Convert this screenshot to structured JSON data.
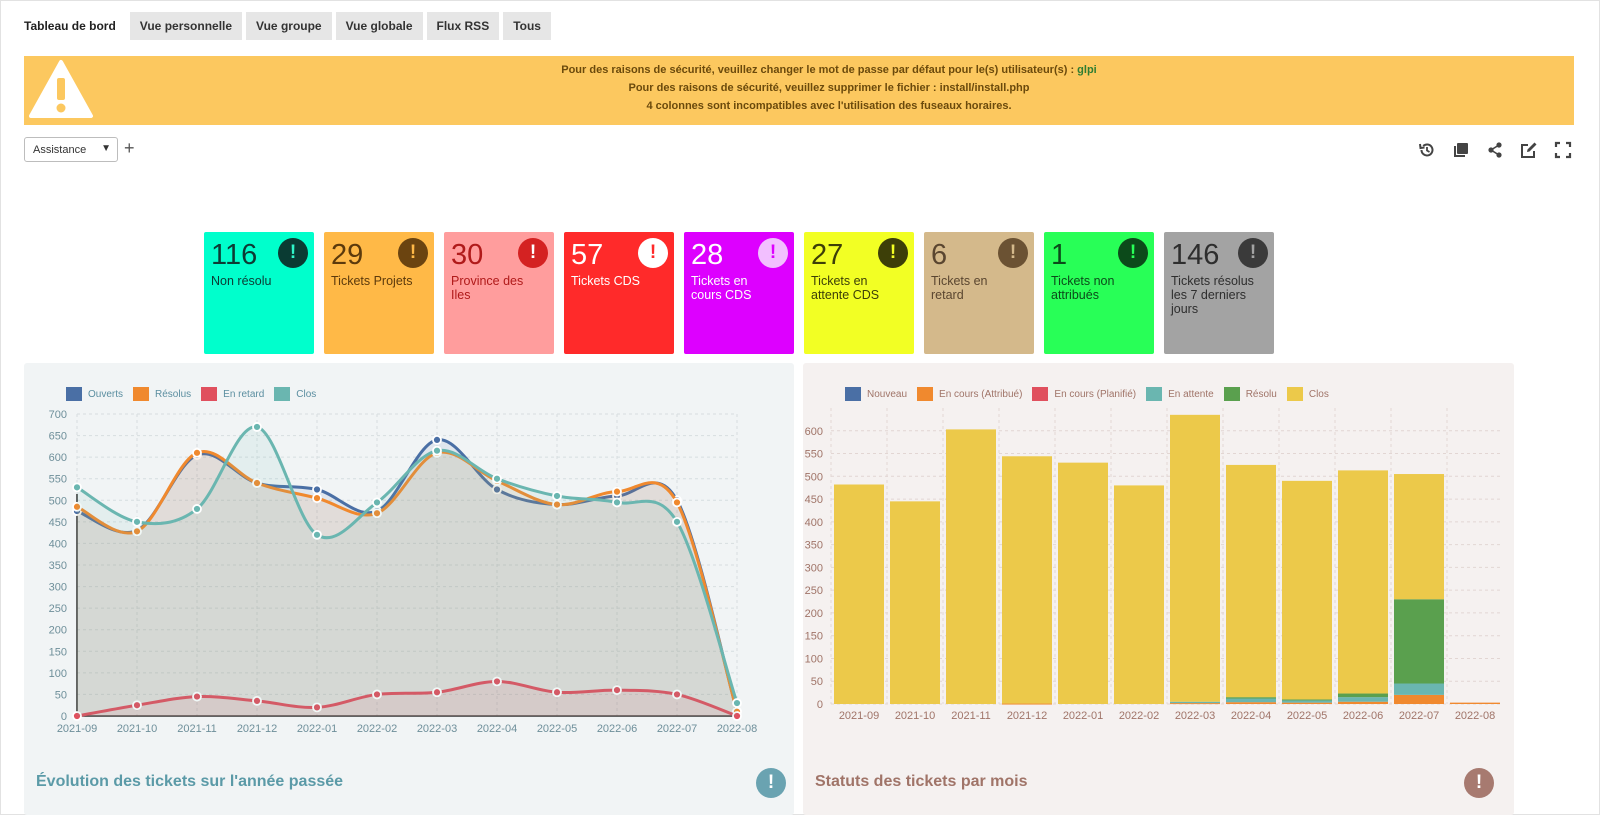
{
  "tabs": [
    {
      "label": "Tableau de bord"
    },
    {
      "label": "Vue personnelle"
    },
    {
      "label": "Vue groupe"
    },
    {
      "label": "Vue globale"
    },
    {
      "label": "Flux RSS"
    },
    {
      "label": "Tous"
    }
  ],
  "banner": {
    "line1": "Pour des raisons de sécurité, veuillez changer le mot de passe par défaut pour le(s) utilisateur(s) : ",
    "line1_link": "glpi",
    "line2": "Pour des raisons de sécurité, veuillez supprimer le fichier : install/install.php",
    "line3": "4 colonnes sont incompatibles avec l'utilisation des fuseaux horaires.",
    "color": "#fcc85f"
  },
  "toolbar": {
    "dashboard_select": "Assistance",
    "add_icon": "plus-icon",
    "tools": [
      "history-icon",
      "clone-icon",
      "share-icon",
      "edit-icon",
      "fullscreen-icon"
    ]
  },
  "tiles": [
    {
      "value": "116",
      "label": "Non résolu",
      "bg": "#00ffcc",
      "badge_bg": "#0a3b33",
      "badge_fg": "#2ff5c8",
      "text": "#0d3b34"
    },
    {
      "value": "29",
      "label": "Tickets Projets",
      "bg": "#ffb947",
      "badge_bg": "#6b4410",
      "badge_fg": "#ffb947",
      "text": "#5c3a0c"
    },
    {
      "value": "30",
      "label": "Province des Iles",
      "bg": "#ff9d9d",
      "badge_bg": "#d42222",
      "badge_fg": "#ffffff",
      "text": "#b01a1a"
    },
    {
      "value": "57",
      "label": "Tickets CDS",
      "bg": "#ff2a2a",
      "badge_bg": "#ffffff",
      "badge_fg": "#ff2a2a",
      "text": "#ffffff"
    },
    {
      "value": "28",
      "label": "Tickets en cours CDS",
      "bg": "#dd00ff",
      "badge_bg": "#f2bfff",
      "badge_fg": "#dd00ff",
      "text": "#ffffff"
    },
    {
      "value": "27",
      "label": "Tickets en attente CDS",
      "bg": "#f2ff24",
      "badge_bg": "#3d3f08",
      "badge_fg": "#f2ff24",
      "text": "#3d3f08"
    },
    {
      "value": "6",
      "label": "Tickets en retard",
      "bg": "#d4b98b",
      "badge_bg": "#6b5233",
      "badge_fg": "#d4b98b",
      "text": "#5a4630"
    },
    {
      "value": "1",
      "label": "Tickets non attribués",
      "bg": "#28ff57",
      "badge_bg": "#0c4a1a",
      "badge_fg": "#28ff57",
      "text": "#0c4a1a"
    },
    {
      "value": "146",
      "label": "Tickets résolus les 7 derniers jours",
      "bg": "#a3a3a3",
      "badge_bg": "#3a3a3a",
      "badge_fg": "#a3a3a3",
      "text": "#2e2e2e"
    }
  ],
  "left_card": {
    "title": "Évolution des tickets sur l'année passée",
    "badge_color": "#6aa3b1",
    "legend": [
      {
        "name": "Ouverts",
        "color": "#4a6fa5"
      },
      {
        "name": "Résolus",
        "color": "#f0892e"
      },
      {
        "name": "En retard",
        "color": "#e0505e"
      },
      {
        "name": "Clos",
        "color": "#6ab6b0"
      }
    ]
  },
  "right_card": {
    "title": "Statuts des tickets par mois",
    "badge_color": "#a77a70",
    "legend": [
      {
        "name": "Nouveau",
        "color": "#4a6fa5"
      },
      {
        "name": "En cours (Attribué)",
        "color": "#f0892e"
      },
      {
        "name": "En cours (Planifié)",
        "color": "#e0505e"
      },
      {
        "name": "En attente",
        "color": "#6ab6b0"
      },
      {
        "name": "Résolu",
        "color": "#5aa04e"
      },
      {
        "name": "Clos",
        "color": "#ecc94a"
      }
    ]
  },
  "chart_data": [
    {
      "type": "line",
      "title": "Évolution des tickets sur l'année passée",
      "categories": [
        "2021-09",
        "2021-10",
        "2021-11",
        "2021-12",
        "2022-01",
        "2022-02",
        "2022-03",
        "2022-04",
        "2022-05",
        "2022-06",
        "2022-07",
        "2022-08"
      ],
      "ylim": [
        0,
        700
      ],
      "yticks": [
        0,
        50,
        100,
        150,
        200,
        250,
        300,
        350,
        400,
        450,
        500,
        550,
        600,
        650,
        700
      ],
      "grid": true,
      "legend_position": "top-left",
      "series": [
        {
          "name": "Ouverts",
          "color": "#4a6fa5",
          "values": [
            475,
            430,
            605,
            540,
            525,
            475,
            640,
            525,
            490,
            510,
            500,
            10
          ]
        },
        {
          "name": "Résolus",
          "color": "#f0892e",
          "values": [
            485,
            428,
            610,
            540,
            505,
            470,
            610,
            545,
            490,
            520,
            495,
            10
          ]
        },
        {
          "name": "En retard",
          "color": "#e0505e",
          "values": [
            0,
            25,
            45,
            35,
            20,
            50,
            55,
            80,
            55,
            60,
            50,
            0
          ]
        },
        {
          "name": "Clos",
          "color": "#6ab6b0",
          "values": [
            530,
            450,
            480,
            670,
            420,
            495,
            615,
            550,
            510,
            495,
            450,
            30
          ]
        }
      ]
    },
    {
      "type": "bar",
      "stacked": true,
      "title": "Statuts des tickets par mois",
      "categories": [
        "2021-09",
        "2021-10",
        "2021-11",
        "2021-12",
        "2022-01",
        "2022-02",
        "2022-03",
        "2022-04",
        "2022-05",
        "2022-06",
        "2022-07",
        "2022-08"
      ],
      "ylim": [
        0,
        650
      ],
      "yticks": [
        0,
        50,
        100,
        150,
        200,
        250,
        300,
        350,
        400,
        450,
        500,
        550,
        600
      ],
      "grid": true,
      "legend_position": "top-left",
      "series": [
        {
          "name": "Nouveau",
          "color": "#4a6fa5",
          "values": [
            0,
            0,
            0,
            0,
            0,
            0,
            0,
            0,
            0,
            0,
            0,
            0
          ]
        },
        {
          "name": "En cours (Attribué)",
          "color": "#f0892e",
          "values": [
            0,
            0,
            0,
            1,
            0,
            0,
            2,
            4,
            3,
            5,
            20,
            3
          ]
        },
        {
          "name": "En cours (Planifié)",
          "color": "#e0505e",
          "values": [
            0,
            0,
            0,
            0,
            0,
            0,
            0,
            0,
            0,
            0,
            0,
            0
          ]
        },
        {
          "name": "En attente",
          "color": "#6ab6b0",
          "values": [
            0,
            0,
            0,
            0,
            0,
            0,
            3,
            8,
            5,
            10,
            25,
            0
          ]
        },
        {
          "name": "Résolu",
          "color": "#5aa04e",
          "values": [
            0,
            0,
            0,
            0,
            0,
            0,
            0,
            3,
            2,
            8,
            185,
            0
          ]
        },
        {
          "name": "Clos",
          "color": "#ecc94a",
          "values": [
            482,
            445,
            603,
            543,
            530,
            480,
            630,
            510,
            480,
            490,
            275,
            0
          ]
        }
      ]
    }
  ]
}
